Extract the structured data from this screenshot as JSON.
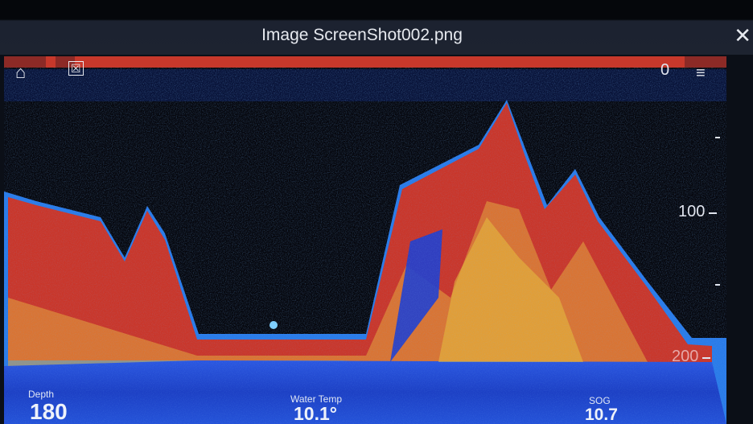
{
  "window": {
    "title": "Image ScreenShot002.png",
    "close_icon": "close-icon"
  },
  "toolbar": {
    "home_icon": "home-icon",
    "waypoint_icon": "waypoint-flag-icon",
    "menu_icon": "menu-icon"
  },
  "depth_scale": {
    "labels": [
      "0",
      "100",
      "200"
    ]
  },
  "readouts": [
    {
      "label": "Depth",
      "value": "180"
    },
    {
      "label": "Water Temp",
      "value": "10.1°"
    },
    {
      "label": "SOG",
      "value": "10.7"
    }
  ],
  "colors": {
    "strong_return": "#c7382b",
    "medium_return": "#e8c13a",
    "weak_return": "#1f4fd8",
    "background": "#05060c"
  }
}
